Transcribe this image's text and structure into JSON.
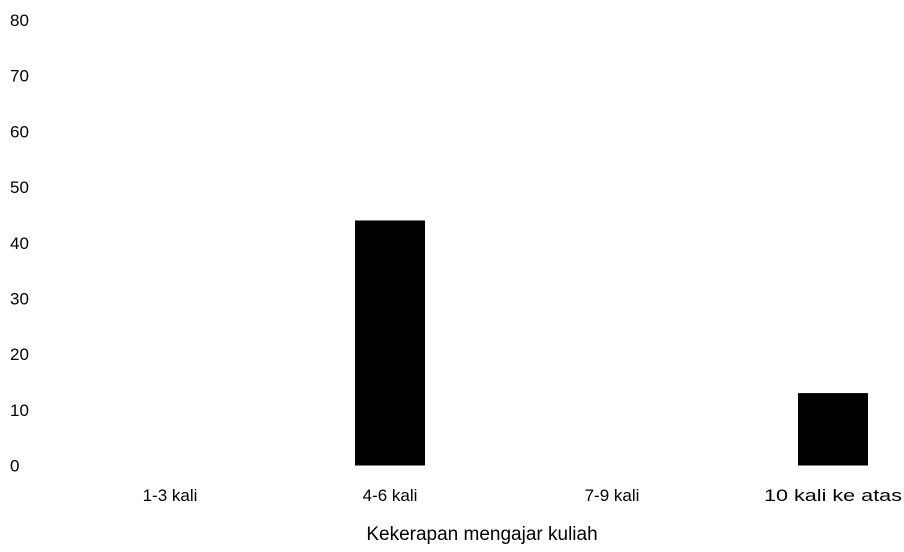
{
  "chart_data": {
    "type": "bar",
    "title": "",
    "xlabel": "Kekerapan mengajar kuliah",
    "ylabel": "",
    "categories": [
      "1-3 kali",
      "4-6 kali",
      "7-9 kali",
      "10 kali ke atas"
    ],
    "values": [
      0,
      44,
      0,
      13
    ],
    "ylim": [
      0,
      80
    ],
    "yticks": [
      "0",
      "10",
      "20",
      "30",
      "40",
      "50",
      "60",
      "70",
      "80"
    ],
    "grid": false,
    "legend": "none",
    "bar_color": "#000000"
  }
}
